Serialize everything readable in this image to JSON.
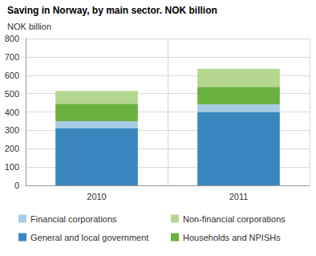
{
  "chart_data": {
    "type": "bar",
    "title": "Saving in Norway, by main sector. NOK billion",
    "y_label": "NOK billion",
    "categories": [
      "2010",
      "2011"
    ],
    "series": [
      {
        "name": "General and local government",
        "color": "#3a87c0",
        "values": [
          310,
          400
        ]
      },
      {
        "name": "Financial corporations",
        "color": "#a8cbe6",
        "values": [
          40,
          42
        ]
      },
      {
        "name": "Households and NPISHs",
        "color": "#6bb13f",
        "values": [
          95,
          95
        ]
      },
      {
        "name": "Non-financial corporations",
        "color": "#b4d68e",
        "values": [
          70,
          98
        ]
      }
    ],
    "stacked": true,
    "ylim": [
      0,
      800
    ],
    "yticks": [
      0,
      100,
      200,
      300,
      400,
      500,
      600,
      700,
      800
    ],
    "grid": true,
    "legend": "bottom"
  }
}
